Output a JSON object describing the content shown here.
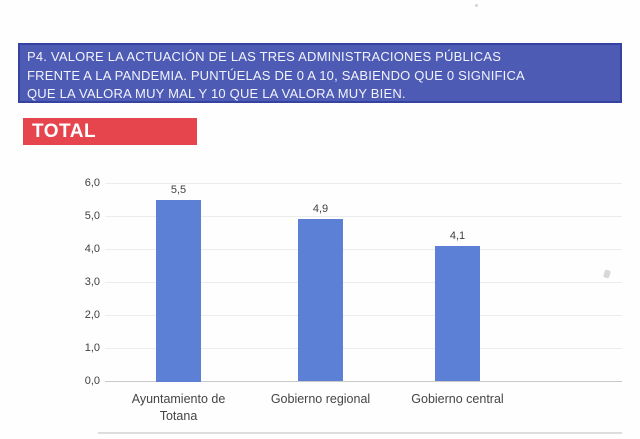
{
  "question_box": {
    "lines": [
      "P4. VALORE LA ACTUACIÓN DE LAS TRES ADMINISTRACIONES PÚBLICAS",
      "FRENTE A LA PANDEMIA. PUNTÚELAS DE 0 A 10, SABIENDO QUE 0 SIGNIFICA",
      "QUE LA VALORA MUY MAL Y 10 QUE LA VALORA MUY BIEN."
    ],
    "bg": "#4d5bb5",
    "border": "#3642a0",
    "text_color": "#f2f3fa"
  },
  "section_label": {
    "text": "TOTAL",
    "bg": "#e7454e",
    "text_color": "#ffffff"
  },
  "chart_data": {
    "type": "bar",
    "title": "",
    "xlabel": "",
    "ylabel": "",
    "categories": [
      "Ayuntamiento de Totana",
      "Gobierno regional",
      "Gobierno central"
    ],
    "values": [
      5.5,
      4.9,
      4.1
    ],
    "value_labels": [
      "5,5",
      "4,9",
      "4,1"
    ],
    "y_ticks": [
      "0,0",
      "1,0",
      "2,0",
      "3,0",
      "4,0",
      "5,0",
      "6,0"
    ],
    "ylim": [
      0,
      6
    ],
    "grid": true,
    "legend": "none",
    "bar_color": "#5b80d5",
    "grid_color": "#ececec",
    "axis_line_color": "#c9c9c9",
    "text_color": "#3f3f3f"
  }
}
